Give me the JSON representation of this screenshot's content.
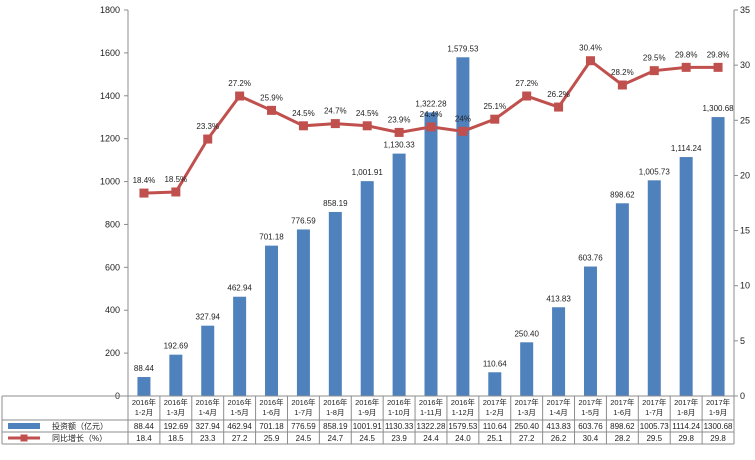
{
  "chart_data": {
    "type": "bar+line",
    "categories": [
      [
        "2016年",
        "1-2月"
      ],
      [
        "2016年",
        "1-3月"
      ],
      [
        "2016年",
        "1-4月"
      ],
      [
        "2016年",
        "1-5月"
      ],
      [
        "2016年",
        "1-6月"
      ],
      [
        "2016年",
        "1-7月"
      ],
      [
        "2016年",
        "1-8月"
      ],
      [
        "2016年",
        "1-9月"
      ],
      [
        "2016年",
        "1-10月"
      ],
      [
        "2016年",
        "1-11月"
      ],
      [
        "2016年",
        "1-12月"
      ],
      [
        "2017年",
        "1-2月"
      ],
      [
        "2017年",
        "1-3月"
      ],
      [
        "2017年",
        "1-4月"
      ],
      [
        "2017年",
        "1-5月"
      ],
      [
        "2017年",
        "1-6月"
      ],
      [
        "2017年",
        "1-7月"
      ],
      [
        "2017年",
        "1-8月"
      ],
      [
        "2017年",
        "1-9月"
      ]
    ],
    "series": [
      {
        "name": "投资额（亿元）",
        "type": "bar",
        "axis": "left",
        "color": "#4F81BD",
        "values": [
          88.44,
          192.69,
          327.94,
          462.94,
          701.18,
          776.59,
          858.19,
          1001.91,
          1130.33,
          1322.28,
          1579.53,
          110.64,
          250.4,
          413.83,
          603.76,
          898.62,
          1005.73,
          1114.24,
          1300.68
        ],
        "labels": [
          "88.44",
          "192.69",
          "327.94",
          "462.94",
          "701.18",
          "776.59",
          "858.19",
          "1,001.91",
          "1,130.33",
          "1,322.28",
          "1,579.53",
          "110.64",
          "250.40",
          "413.83",
          "603.76",
          "898.62",
          "1,005.73",
          "1,114.24",
          "1,300.68"
        ],
        "table_values": [
          "88.44",
          "192.69",
          "327.94",
          "462.94",
          "701.18",
          "776.59",
          "858.19",
          "1001.91",
          "1130.33",
          "1322.28",
          "1579.53",
          "110.64",
          "250.40",
          "413.83",
          "603.76",
          "898.62",
          "1005.73",
          "1114.24",
          "1300.68"
        ]
      },
      {
        "name": "同比增长（%）",
        "type": "line",
        "axis": "right",
        "color": "#C0504D",
        "values": [
          18.4,
          18.5,
          23.3,
          27.2,
          25.9,
          24.5,
          24.7,
          24.5,
          23.9,
          24.4,
          24.0,
          25.1,
          27.2,
          26.2,
          30.4,
          28.2,
          29.5,
          29.8,
          29.8
        ],
        "labels": [
          "18.4%",
          "18.5%",
          "23.3%",
          "27.2%",
          "25.9%",
          "24.5%",
          "24.7%",
          "24.5%",
          "23.9%",
          "24.4%",
          "24%",
          "25.1%",
          "27.2%",
          "26.2%",
          "30.4%",
          "28.2%",
          "29.5%",
          "29.8%",
          "29.8%"
        ],
        "table_values": [
          "18.4",
          "18.5",
          "23.3",
          "27.2",
          "25.9",
          "24.5",
          "24.7",
          "24.5",
          "23.9",
          "24.4",
          "24.0",
          "25.1",
          "27.2",
          "26.2",
          "30.4",
          "28.2",
          "29.5",
          "29.8",
          "29.8"
        ]
      }
    ],
    "y_left": {
      "min": 0,
      "max": 1800,
      "step": 200,
      "ticks": [
        "0",
        "200",
        "400",
        "600",
        "800",
        "1000",
        "1200",
        "1400",
        "1600",
        "1800"
      ]
    },
    "y_right": {
      "min": 0,
      "max": 35,
      "step": 5,
      "ticks": [
        "0",
        "5",
        "10",
        "15",
        "20",
        "25",
        "30",
        "35"
      ]
    },
    "grid": false,
    "legend": "data-table-below"
  }
}
